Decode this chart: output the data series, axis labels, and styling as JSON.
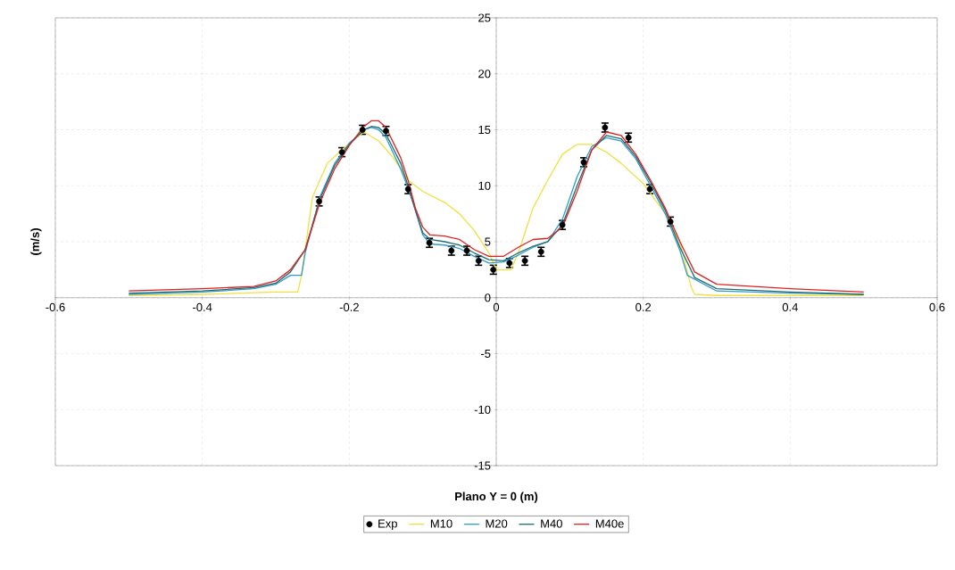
{
  "chart_data": {
    "type": "line",
    "xlabel": "Plano Y = 0 (m)",
    "ylabel": "(m/s)",
    "xlim": [
      -0.6,
      0.6
    ],
    "ylim": [
      -15,
      25
    ],
    "xticks": [
      -0.6,
      -0.4,
      -0.2,
      0,
      0.2,
      0.4,
      0.6
    ],
    "yticks": [
      -15,
      -10,
      -5,
      0,
      5,
      10,
      15,
      20,
      25
    ],
    "grid": true,
    "legend": "bottom",
    "series": [
      {
        "name": "Exp",
        "type": "scatter",
        "marker": "circle",
        "color": "#000000",
        "x": [
          -0.241,
          -0.21,
          -0.182,
          -0.15,
          -0.12,
          -0.091,
          -0.061,
          -0.04,
          -0.024,
          -0.004,
          0.018,
          0.039,
          0.061,
          0.09,
          0.119,
          0.148,
          0.18,
          0.209,
          0.237
        ],
        "values": [
          8.6,
          13.0,
          15.0,
          14.9,
          9.7,
          4.9,
          4.2,
          4.2,
          3.3,
          2.5,
          3.1,
          3.3,
          4.1,
          6.5,
          12.1,
          15.2,
          14.3,
          9.7,
          6.8
        ],
        "errors": [
          0.4,
          0.4,
          0.4,
          0.4,
          0.4,
          0.4,
          0.4,
          0.4,
          0.4,
          0.4,
          0.4,
          0.4,
          0.4,
          0.4,
          0.4,
          0.4,
          0.4,
          0.4,
          0.4
        ]
      },
      {
        "name": "M10",
        "color": "#f0e040",
        "x": [
          -0.5,
          -0.4,
          -0.3,
          -0.27,
          -0.265,
          -0.25,
          -0.23,
          -0.2,
          -0.18,
          -0.16,
          -0.14,
          -0.12,
          -0.1,
          -0.07,
          -0.05,
          -0.03,
          -0.01,
          0.0,
          0.02,
          0.03,
          0.05,
          0.07,
          0.09,
          0.11,
          0.13,
          0.15,
          0.17,
          0.2,
          0.23,
          0.25,
          0.265,
          0.27,
          0.3,
          0.4,
          0.5
        ],
        "values": [
          0.2,
          0.3,
          0.5,
          0.5,
          2.0,
          9.0,
          12.0,
          13.8,
          14.8,
          14.0,
          12.5,
          10.5,
          9.5,
          8.5,
          7.5,
          6.0,
          4.0,
          2.5,
          2.5,
          4.0,
          8.0,
          10.5,
          12.8,
          13.7,
          13.7,
          13.0,
          12.0,
          10.2,
          7.5,
          5.0,
          1.0,
          0.3,
          0.2,
          0.2,
          0.2
        ]
      },
      {
        "name": "M20",
        "color": "#3399cc",
        "x": [
          -0.5,
          -0.4,
          -0.33,
          -0.3,
          -0.28,
          -0.265,
          -0.26,
          -0.24,
          -0.22,
          -0.2,
          -0.18,
          -0.17,
          -0.16,
          -0.15,
          -0.13,
          -0.12,
          -0.11,
          -0.1,
          -0.09,
          -0.07,
          -0.05,
          -0.03,
          -0.01,
          0.01,
          0.03,
          0.05,
          0.07,
          0.09,
          0.11,
          0.13,
          0.15,
          0.17,
          0.19,
          0.21,
          0.23,
          0.25,
          0.26,
          0.3,
          0.4,
          0.5
        ],
        "values": [
          0.3,
          0.5,
          0.8,
          1.2,
          2.0,
          2.0,
          4.0,
          9.0,
          12.0,
          13.8,
          15.0,
          15.2,
          15.0,
          14.3,
          11.5,
          9.8,
          7.8,
          5.6,
          4.8,
          4.7,
          4.4,
          3.7,
          3.1,
          3.2,
          3.8,
          4.5,
          5.0,
          7.0,
          10.8,
          13.5,
          14.3,
          14.0,
          12.4,
          10.0,
          7.5,
          4.2,
          2.0,
          0.6,
          0.4,
          0.3
        ]
      },
      {
        "name": "M40",
        "color": "#1f6f70",
        "x": [
          -0.5,
          -0.4,
          -0.33,
          -0.3,
          -0.28,
          -0.26,
          -0.24,
          -0.22,
          -0.2,
          -0.18,
          -0.17,
          -0.16,
          -0.15,
          -0.13,
          -0.12,
          -0.11,
          -0.1,
          -0.09,
          -0.07,
          -0.05,
          -0.03,
          -0.01,
          0.01,
          0.03,
          0.05,
          0.07,
          0.09,
          0.11,
          0.13,
          0.15,
          0.17,
          0.19,
          0.21,
          0.23,
          0.25,
          0.27,
          0.3,
          0.4,
          0.5
        ],
        "values": [
          0.4,
          0.6,
          0.9,
          1.3,
          2.3,
          4.3,
          8.8,
          11.8,
          13.7,
          15.0,
          15.3,
          15.2,
          14.6,
          12.0,
          10.0,
          7.8,
          5.8,
          5.2,
          5.0,
          4.7,
          4.0,
          3.4,
          3.3,
          4.0,
          4.6,
          5.0,
          6.5,
          10.0,
          13.2,
          14.5,
          14.2,
          12.6,
          10.3,
          7.8,
          4.5,
          1.8,
          0.8,
          0.5,
          0.3
        ]
      },
      {
        "name": "M40e",
        "color": "#e02020",
        "x": [
          -0.5,
          -0.4,
          -0.33,
          -0.3,
          -0.28,
          -0.26,
          -0.24,
          -0.22,
          -0.2,
          -0.18,
          -0.17,
          -0.16,
          -0.15,
          -0.13,
          -0.12,
          -0.11,
          -0.1,
          -0.09,
          -0.07,
          -0.05,
          -0.03,
          -0.01,
          0.01,
          0.03,
          0.05,
          0.07,
          0.09,
          0.11,
          0.13,
          0.15,
          0.17,
          0.19,
          0.21,
          0.23,
          0.25,
          0.27,
          0.3,
          0.4,
          0.5
        ],
        "values": [
          0.6,
          0.8,
          1.0,
          1.5,
          2.5,
          4.3,
          8.5,
          11.5,
          13.6,
          15.3,
          15.8,
          15.8,
          15.2,
          12.5,
          10.5,
          8.0,
          6.3,
          5.6,
          5.5,
          5.2,
          4.3,
          3.7,
          3.7,
          4.5,
          5.2,
          5.3,
          6.3,
          9.5,
          13.2,
          14.8,
          14.5,
          12.8,
          10.5,
          8.0,
          5.0,
          2.3,
          1.2,
          0.8,
          0.5
        ]
      }
    ]
  }
}
